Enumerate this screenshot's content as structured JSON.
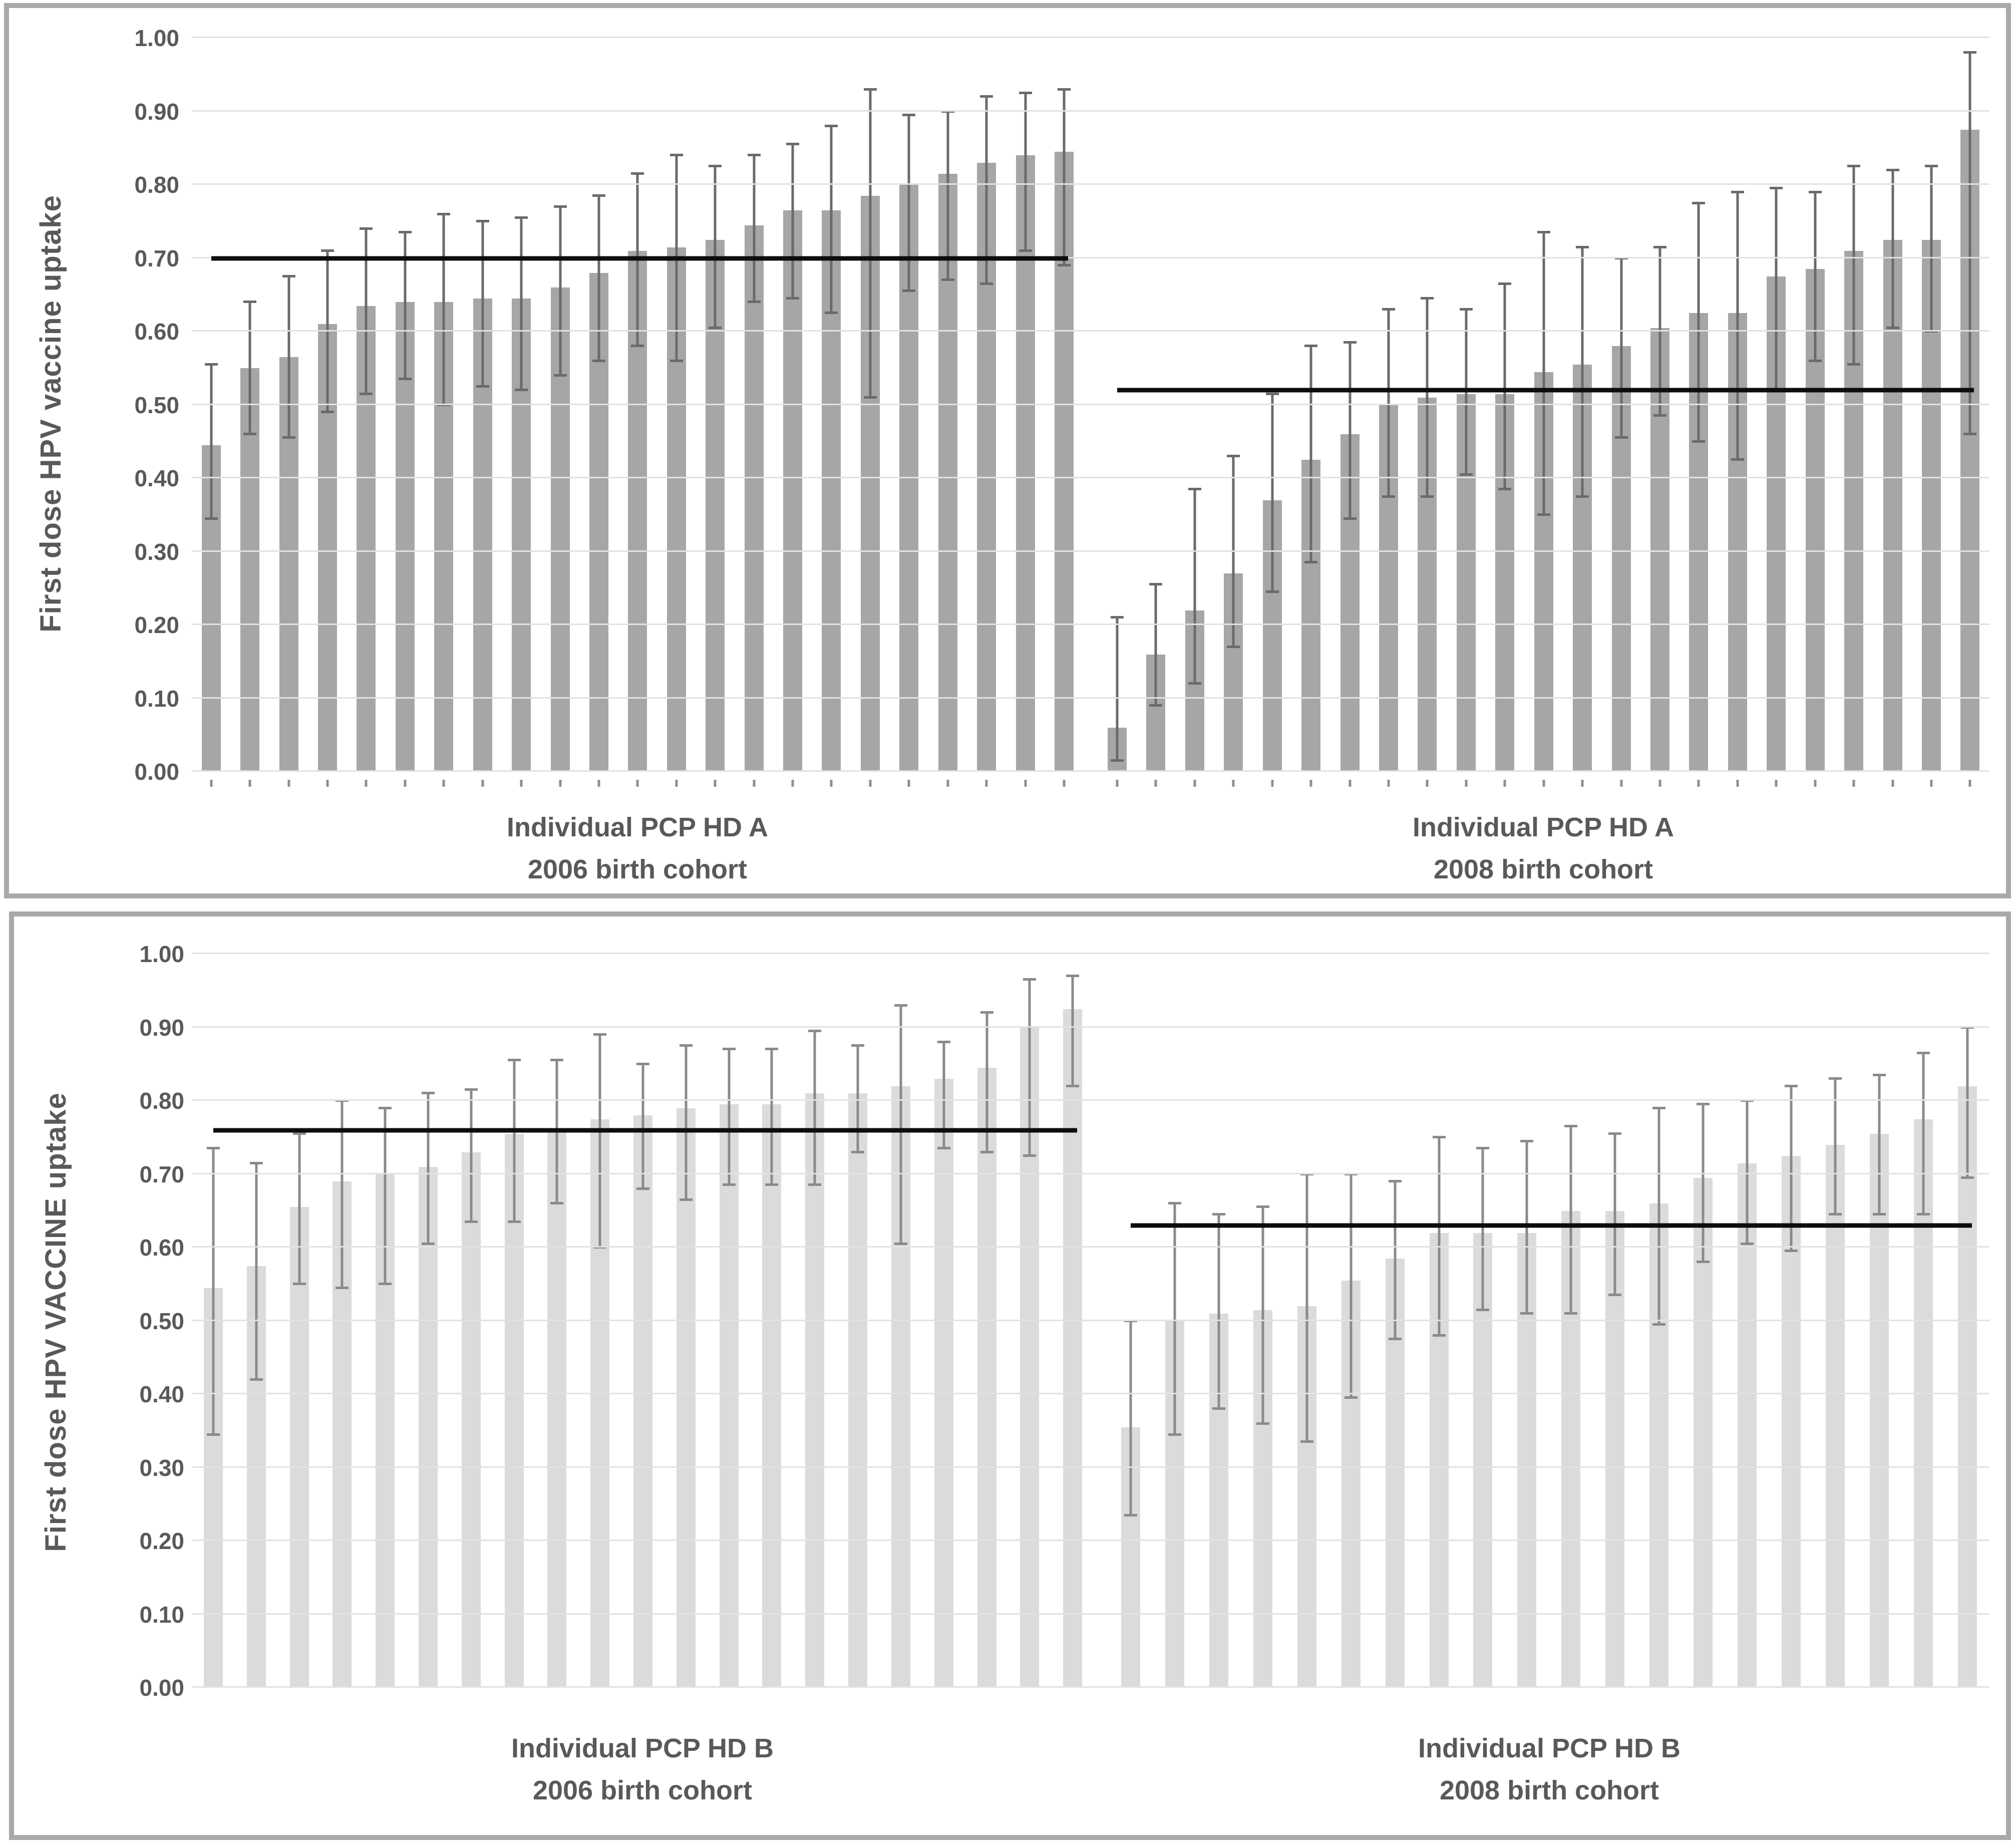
{
  "figure": {
    "description_note": "Two framed panels of caterpillar bar charts with 95% CI error bars and black reference lines",
    "frame_color": "#a9a9a9",
    "background": "#ffffff"
  },
  "chart_data": [
    {
      "type": "bar",
      "panel": "top",
      "ylabel": "First dose HPV vaccine uptake",
      "ylim": [
        0.0,
        1.0
      ],
      "yticks": [
        "0.00",
        "0.10",
        "0.20",
        "0.30",
        "0.40",
        "0.50",
        "0.60",
        "0.70",
        "0.80",
        "0.90",
        "1.00"
      ],
      "grid": true,
      "legend": "none",
      "bar_color": "#a6a6a6",
      "error_color": "#6a6a6a",
      "axis_tick_marks": true,
      "bars_format": "[value, ci_low, ci_high]",
      "groups": [
        {
          "label_line1": "Individual PCP HD A",
          "label_line2": "2006 birth cohort",
          "reference_line": 0.7,
          "bars": [
            [
              0.445,
              0.345,
              0.555
            ],
            [
              0.55,
              0.46,
              0.64
            ],
            [
              0.565,
              0.455,
              0.675
            ],
            [
              0.61,
              0.49,
              0.71
            ],
            [
              0.635,
              0.515,
              0.74
            ],
            [
              0.64,
              0.535,
              0.735
            ],
            [
              0.64,
              0.5,
              0.76
            ],
            [
              0.645,
              0.525,
              0.75
            ],
            [
              0.645,
              0.52,
              0.755
            ],
            [
              0.66,
              0.54,
              0.77
            ],
            [
              0.68,
              0.56,
              0.785
            ],
            [
              0.71,
              0.58,
              0.815
            ],
            [
              0.715,
              0.56,
              0.84
            ],
            [
              0.725,
              0.605,
              0.825
            ],
            [
              0.745,
              0.64,
              0.84
            ],
            [
              0.765,
              0.645,
              0.855
            ],
            [
              0.765,
              0.625,
              0.88
            ],
            [
              0.785,
              0.51,
              0.93
            ],
            [
              0.8,
              0.655,
              0.895
            ],
            [
              0.815,
              0.67,
              0.9
            ],
            [
              0.83,
              0.665,
              0.92
            ],
            [
              0.84,
              0.71,
              0.925
            ],
            [
              0.845,
              0.69,
              0.93
            ]
          ]
        },
        {
          "label_line1": "Individual PCP HD A",
          "label_line2": "2008 birth cohort",
          "reference_line": 0.52,
          "bars": [
            [
              0.06,
              0.015,
              0.21
            ],
            [
              0.16,
              0.09,
              0.255
            ],
            [
              0.22,
              0.12,
              0.385
            ],
            [
              0.27,
              0.17,
              0.43
            ],
            [
              0.37,
              0.245,
              0.515
            ],
            [
              0.425,
              0.285,
              0.58
            ],
            [
              0.46,
              0.345,
              0.585
            ],
            [
              0.5,
              0.375,
              0.63
            ],
            [
              0.51,
              0.375,
              0.645
            ],
            [
              0.515,
              0.405,
              0.63
            ],
            [
              0.515,
              0.385,
              0.665
            ],
            [
              0.545,
              0.35,
              0.735
            ],
            [
              0.555,
              0.375,
              0.715
            ],
            [
              0.58,
              0.455,
              0.7
            ],
            [
              0.605,
              0.485,
              0.715
            ],
            [
              0.625,
              0.45,
              0.775
            ],
            [
              0.625,
              0.425,
              0.79
            ],
            [
              0.675,
              0.52,
              0.795
            ],
            [
              0.685,
              0.56,
              0.79
            ],
            [
              0.71,
              0.555,
              0.825
            ],
            [
              0.725,
              0.605,
              0.82
            ],
            [
              0.725,
              0.6,
              0.825
            ],
            [
              0.875,
              0.46,
              0.98
            ]
          ]
        }
      ]
    },
    {
      "type": "bar",
      "panel": "bottom",
      "ylabel": "First dose HPV VACCINE uptake",
      "ylim": [
        0.0,
        1.0
      ],
      "yticks": [
        "0.00",
        "0.10",
        "0.20",
        "0.30",
        "0.40",
        "0.50",
        "0.60",
        "0.70",
        "0.80",
        "0.90",
        "1.00"
      ],
      "grid": true,
      "legend": "none",
      "bar_color": "#dbdbdb",
      "error_color": "#8a8a8a",
      "axis_tick_marks": false,
      "bars_format": "[value, ci_low, ci_high]",
      "groups": [
        {
          "label_line1": "Individual PCP HD B",
          "label_line2": "2006 birth cohort",
          "reference_line": 0.76,
          "bars": [
            [
              0.545,
              0.345,
              0.735
            ],
            [
              0.575,
              0.42,
              0.715
            ],
            [
              0.655,
              0.55,
              0.755
            ],
            [
              0.69,
              0.545,
              0.8
            ],
            [
              0.7,
              0.55,
              0.79
            ],
            [
              0.71,
              0.605,
              0.81
            ],
            [
              0.73,
              0.635,
              0.815
            ],
            [
              0.755,
              0.635,
              0.855
            ],
            [
              0.76,
              0.66,
              0.855
            ],
            [
              0.775,
              0.6,
              0.89
            ],
            [
              0.78,
              0.68,
              0.85
            ],
            [
              0.79,
              0.665,
              0.875
            ],
            [
              0.795,
              0.685,
              0.87
            ],
            [
              0.795,
              0.685,
              0.87
            ],
            [
              0.81,
              0.685,
              0.895
            ],
            [
              0.81,
              0.73,
              0.875
            ],
            [
              0.82,
              0.605,
              0.93
            ],
            [
              0.83,
              0.735,
              0.88
            ],
            [
              0.845,
              0.73,
              0.92
            ],
            [
              0.9,
              0.725,
              0.965
            ],
            [
              0.925,
              0.82,
              0.97
            ]
          ]
        },
        {
          "label_line1": "Individual PCP HD B",
          "label_line2": "2008 birth cohort",
          "reference_line": 0.63,
          "bars": [
            [
              0.355,
              0.235,
              0.5
            ],
            [
              0.5,
              0.345,
              0.66
            ],
            [
              0.51,
              0.38,
              0.645
            ],
            [
              0.515,
              0.36,
              0.655
            ],
            [
              0.52,
              0.335,
              0.7
            ],
            [
              0.555,
              0.395,
              0.7
            ],
            [
              0.585,
              0.475,
              0.69
            ],
            [
              0.62,
              0.48,
              0.75
            ],
            [
              0.62,
              0.515,
              0.735
            ],
            [
              0.62,
              0.51,
              0.745
            ],
            [
              0.65,
              0.51,
              0.765
            ],
            [
              0.65,
              0.535,
              0.755
            ],
            [
              0.66,
              0.495,
              0.79
            ],
            [
              0.695,
              0.58,
              0.795
            ],
            [
              0.715,
              0.605,
              0.8
            ],
            [
              0.725,
              0.595,
              0.82
            ],
            [
              0.74,
              0.645,
              0.83
            ],
            [
              0.755,
              0.645,
              0.835
            ],
            [
              0.775,
              0.645,
              0.865
            ],
            [
              0.82,
              0.695,
              0.9
            ]
          ]
        }
      ]
    }
  ]
}
